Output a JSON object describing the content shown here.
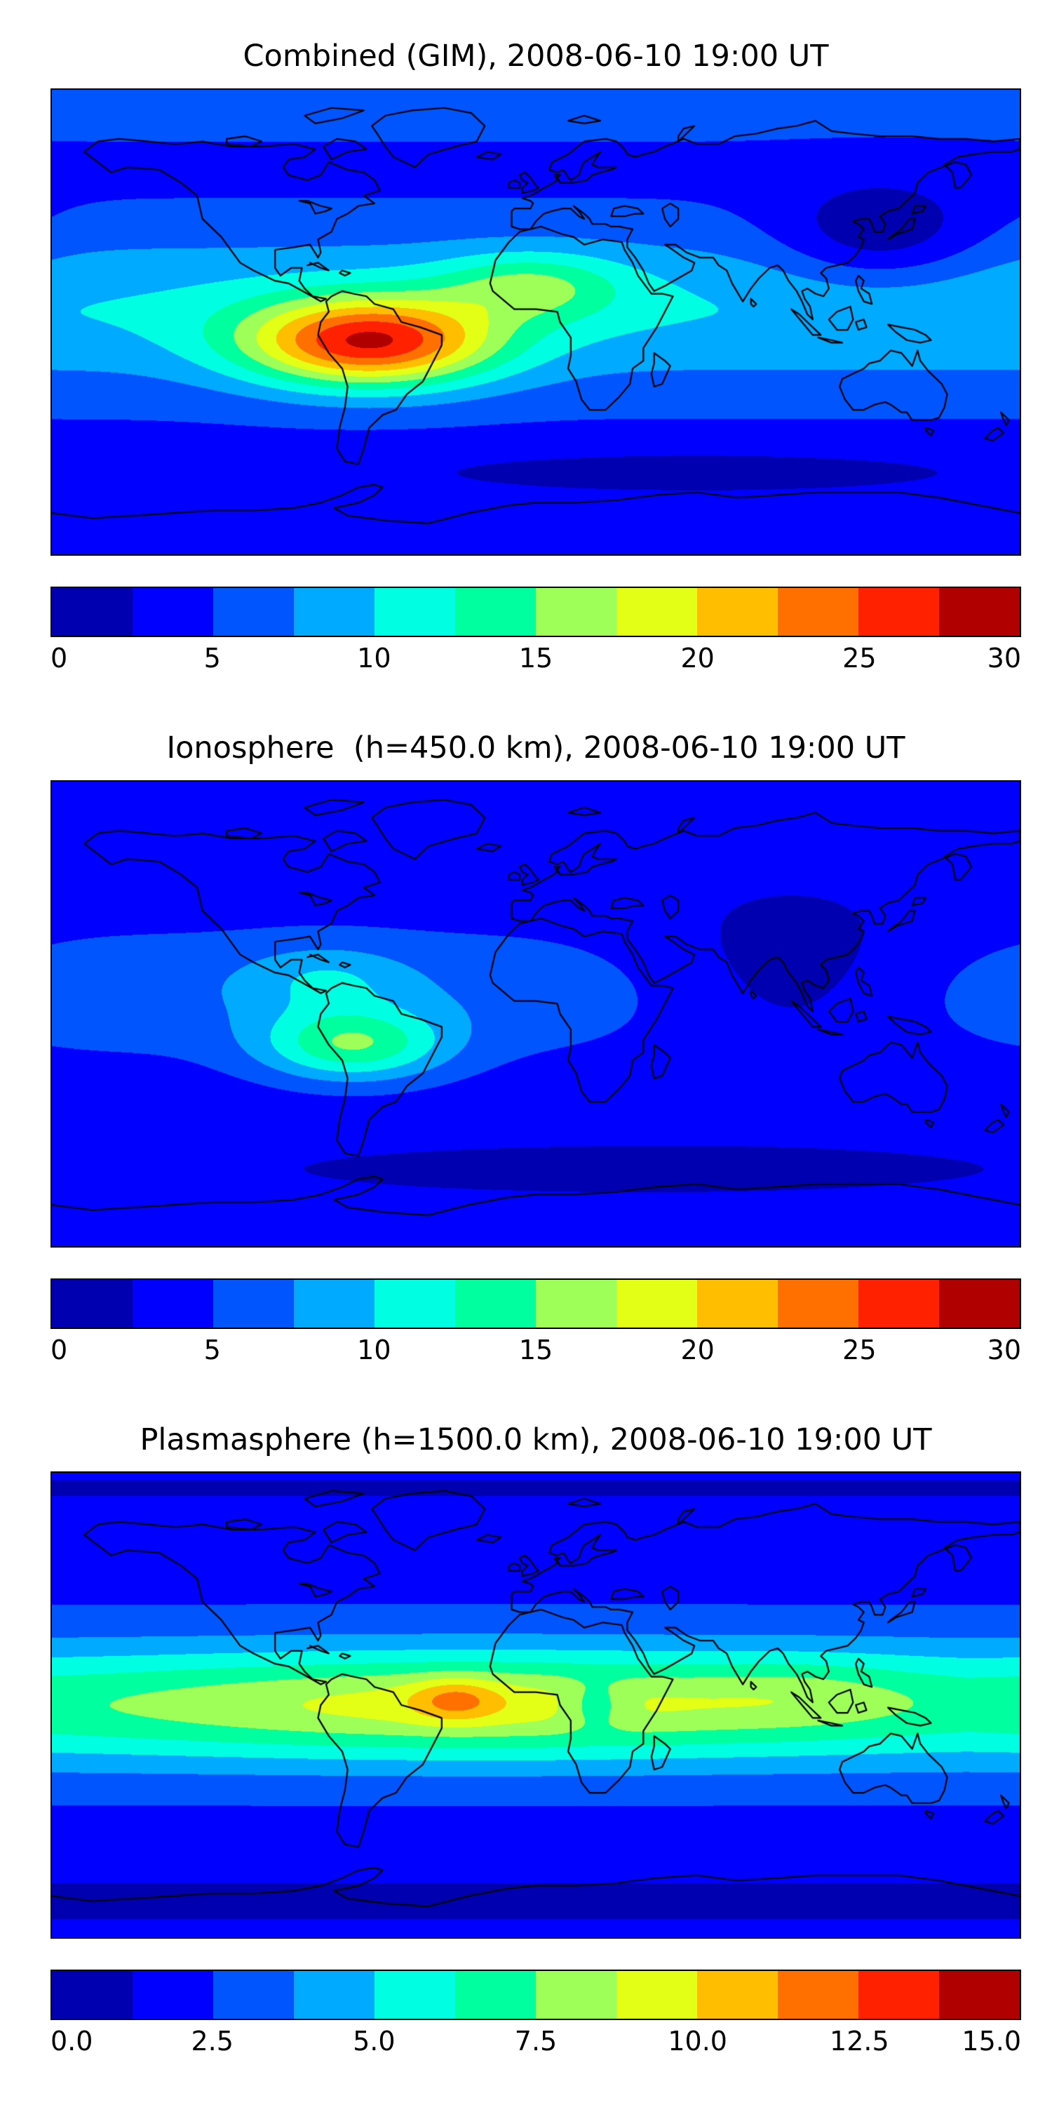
{
  "figure": {
    "background": "#ffffff",
    "coastline_color": "#000000",
    "text_color": "#000000"
  },
  "colormap": {
    "name": "jet-12-discrete",
    "colors": [
      "#0000b0",
      "#0000ff",
      "#0055ff",
      "#00aaff",
      "#00ffe2",
      "#00ff9e",
      "#9eff59",
      "#e2ff15",
      "#ffbf00",
      "#ff7000",
      "#ff2100",
      "#b00000"
    ]
  },
  "chart_data": [
    {
      "type": "heatmap",
      "title": "Combined (GIM), 2008-06-10 19:00 UT",
      "projection": "equirectangular",
      "lon_range": [
        -180,
        180
      ],
      "lat_range": [
        -90,
        90
      ],
      "colorbar": {
        "min": 0,
        "max": 30,
        "n_segments": 12,
        "tick_values": [
          0,
          5,
          10,
          15,
          20,
          25,
          30
        ],
        "tick_labels": [
          "0",
          "5",
          "10",
          "15",
          "20",
          "25",
          "30"
        ]
      },
      "field_model": {
        "description": "Total vertical TEC: equatorial band ~10, strong daytime anomaly peaking ~28 over South America (~62W, 8S), yellow-green enhancement over Sahara, dark depletion over East Asia night sector and southern high-latitude ocean",
        "base": 4.0,
        "blobs": [
          {
            "lon": 0,
            "lat": 5,
            "slon": 9999,
            "slat": 32,
            "amp": 6.0
          },
          {
            "lon": -62,
            "lat": -8,
            "slon": 46,
            "slat": 17,
            "amp": 19.0
          },
          {
            "lon": -2,
            "lat": 14,
            "slon": 34,
            "slat": 13,
            "amp": 6.5
          },
          {
            "lon": 128,
            "lat": 33,
            "slon": 38,
            "slat": 20,
            "amp": -5.5
          },
          {
            "lon": 60,
            "lat": -58,
            "slon": 130,
            "slat": 10,
            "amp": -2.6
          },
          {
            "lon": 0,
            "lat": 82,
            "slon": 9999,
            "slat": 16,
            "amp": 1.6
          }
        ]
      }
    },
    {
      "type": "heatmap",
      "title": "Ionosphere  (h=450.0 km), 2008-06-10 19:00 UT",
      "projection": "equirectangular",
      "lon_range": [
        -180,
        180
      ],
      "lat_range": [
        -90,
        90
      ],
      "colorbar": {
        "min": 0,
        "max": 30,
        "n_segments": 12,
        "tick_values": [
          0,
          5,
          10,
          15,
          20,
          25,
          30
        ],
        "tick_labels": [
          "0",
          "5",
          "10",
          "15",
          "20",
          "25",
          "30"
        ]
      },
      "field_model": {
        "description": "Ionospheric TEC at 450 km: moderate peak ~16 over western South America, cyan patch over Caribbean/Central America, broad dark night-side depletion over Asia and Indian Ocean",
        "base": 3.2,
        "blobs": [
          {
            "lon": 0,
            "lat": 8,
            "slon": 9999,
            "slat": 28,
            "amp": 3.6
          },
          {
            "lon": -68,
            "lat": -12,
            "slon": 34,
            "slat": 14,
            "amp": 10.0
          },
          {
            "lon": -78,
            "lat": 14,
            "slon": 30,
            "slat": 13,
            "amp": 3.6
          },
          {
            "lon": 95,
            "lat": 12,
            "slon": 60,
            "slat": 30,
            "amp": -4.6
          },
          {
            "lon": 40,
            "lat": -60,
            "slon": 140,
            "slat": 10,
            "amp": -1.6
          },
          {
            "lon": 0,
            "lat": 80,
            "slon": 9999,
            "slat": 15,
            "amp": 1.0
          }
        ]
      }
    },
    {
      "type": "heatmap",
      "title": "Plasmasphere (h=1500.0 km), 2008-06-10 19:00 UT",
      "projection": "equirectangular",
      "lon_range": [
        -180,
        180
      ],
      "lat_range": [
        -90,
        90
      ],
      "colorbar": {
        "min": 0,
        "max": 15,
        "n_segments": 12,
        "tick_values": [
          0,
          2.5,
          5,
          7.5,
          10,
          12.5,
          15
        ],
        "tick_labels": [
          "0.0",
          "2.5",
          "5.0",
          "7.5",
          "10.0",
          "12.5",
          "15.0"
        ]
      },
      "field_model": {
        "description": "Plasmaspheric TEC at 1500 km: continuous equatorial belt ~8-10 around the globe, orange maximum ~12 over the Atlantic near 30W, small cyan notch over central Africa, darker blue toward both poles",
        "base": 2.0,
        "blobs": [
          {
            "lon": 0,
            "lat": 0,
            "slon": 9999,
            "slat": 26,
            "amp": 4.6
          },
          {
            "lon": -20,
            "lat": 0,
            "slon": 130,
            "slat": 18,
            "amp": 2.8
          },
          {
            "lon": -30,
            "lat": 2,
            "slon": 16,
            "slat": 8,
            "amp": 2.6
          },
          {
            "lon": 22,
            "lat": 0,
            "slon": 12,
            "slat": 9,
            "amp": -2.0
          },
          {
            "lon": 100,
            "lat": 5,
            "slon": 40,
            "slat": 14,
            "amp": 0.9
          },
          {
            "lon": 0,
            "lat": -76,
            "slon": 9999,
            "slat": 13,
            "amp": -1.0
          },
          {
            "lon": 0,
            "lat": 84,
            "slon": 9999,
            "slat": 12,
            "amp": -0.8
          }
        ]
      }
    }
  ]
}
